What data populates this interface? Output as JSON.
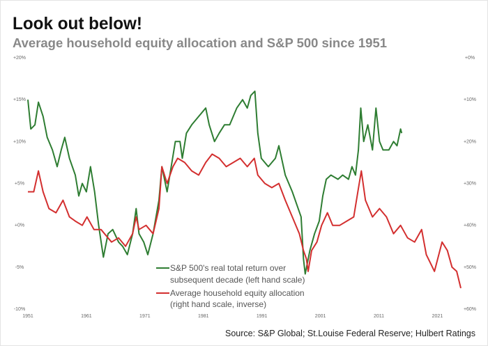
{
  "chart_data": {
    "type": "line",
    "title": "Look out below!",
    "subtitle": "Average household equity allocation and S&P 500 since 1951",
    "source": "Source: S&P Global; St.Louise Federal Reserve; Hulbert Ratings",
    "x_ticks": [
      "1951",
      "1961",
      "1971",
      "1981",
      "1991",
      "2001",
      "2011",
      "2021"
    ],
    "xlim": [
      1951,
      2025
    ],
    "left_axis": {
      "ticks": [
        "+20%",
        "+15%",
        "+10%",
        "+5%",
        "+0%",
        "-5%",
        "-10%"
      ],
      "range": [
        -10,
        20
      ]
    },
    "right_axis": {
      "ticks": [
        "+0%",
        "+10%",
        "+20%",
        "+30%",
        "+40%",
        "+50%",
        "+60%"
      ],
      "range": [
        0,
        60
      ],
      "inverse": true
    },
    "grid": false,
    "legend_placement": "bottom-center",
    "series": [
      {
        "name": "S&P 500's real total return over subsequent decade (left hand scale)",
        "legend_lines": [
          "S&P 500's real total return over",
          "subsequent decade (left hand scale)"
        ],
        "axis": "left",
        "color": "#2e7d32",
        "points": [
          [
            1951.0,
            15
          ],
          [
            1951.5,
            11.5
          ],
          [
            1952.2,
            12
          ],
          [
            1952.8,
            14.7
          ],
          [
            1953.6,
            13
          ],
          [
            1954.3,
            10.5
          ],
          [
            1955.2,
            9
          ],
          [
            1956.0,
            7
          ],
          [
            1956.7,
            9
          ],
          [
            1957.3,
            10.5
          ],
          [
            1958.1,
            8
          ],
          [
            1959.1,
            6
          ],
          [
            1959.7,
            3.5
          ],
          [
            1960.3,
            5
          ],
          [
            1961.0,
            4
          ],
          [
            1961.7,
            7
          ],
          [
            1962.4,
            4
          ],
          [
            1963.1,
            0
          ],
          [
            1963.9,
            -3.8
          ],
          [
            1964.7,
            -1
          ],
          [
            1965.5,
            -0.5
          ],
          [
            1966.5,
            -2
          ],
          [
            1967.2,
            -2.5
          ],
          [
            1968.0,
            -3.5
          ],
          [
            1968.9,
            -1
          ],
          [
            1969.5,
            2
          ],
          [
            1970.0,
            -1
          ],
          [
            1970.8,
            -2
          ],
          [
            1971.5,
            -3.5
          ],
          [
            1972.4,
            -1
          ],
          [
            1973.4,
            3
          ],
          [
            1973.9,
            7
          ],
          [
            1974.8,
            4
          ],
          [
            1975.5,
            7
          ],
          [
            1976.2,
            10
          ],
          [
            1977.0,
            10
          ],
          [
            1977.4,
            8
          ],
          [
            1978.1,
            11
          ],
          [
            1979.0,
            12
          ],
          [
            1980.2,
            13
          ],
          [
            1981.4,
            14
          ],
          [
            1982.0,
            12
          ],
          [
            1982.9,
            10
          ],
          [
            1983.7,
            11
          ],
          [
            1984.6,
            12
          ],
          [
            1985.5,
            12
          ],
          [
            1986.7,
            14
          ],
          [
            1987.7,
            15
          ],
          [
            1988.5,
            14
          ],
          [
            1989.1,
            15.5
          ],
          [
            1989.8,
            16
          ],
          [
            1990.3,
            11
          ],
          [
            1990.9,
            8
          ],
          [
            1992.1,
            7
          ],
          [
            1993.3,
            8
          ],
          [
            1993.9,
            9.5
          ],
          [
            1995.0,
            6
          ],
          [
            1996.2,
            4
          ],
          [
            1997.2,
            2
          ],
          [
            1997.7,
            1
          ],
          [
            1998.1,
            -4
          ],
          [
            1998.4,
            -5.8
          ],
          [
            1999.2,
            -3
          ],
          [
            2000.0,
            -1
          ],
          [
            2000.8,
            0.5
          ],
          [
            2001.4,
            3.5
          ],
          [
            2002.0,
            5.5
          ],
          [
            2002.8,
            6
          ],
          [
            2004.0,
            5.5
          ],
          [
            2004.8,
            6
          ],
          [
            2005.8,
            5.5
          ],
          [
            2006.4,
            7
          ],
          [
            2007.0,
            6
          ],
          [
            2007.5,
            9
          ],
          [
            2007.9,
            14
          ],
          [
            2008.4,
            10
          ],
          [
            2009.1,
            12
          ],
          [
            2009.9,
            9
          ],
          [
            2010.5,
            14
          ],
          [
            2011.1,
            10
          ],
          [
            2011.7,
            9
          ],
          [
            2012.7,
            9
          ],
          [
            2013.5,
            10
          ],
          [
            2014.1,
            9.5
          ],
          [
            2014.7,
            11.5
          ],
          [
            2014.9,
            11
          ]
        ]
      },
      {
        "name": "Average household equity allocation (right hand scale, inverse)",
        "legend_lines": [
          "Average household equity allocation",
          "(right hand scale, inverse)"
        ],
        "axis": "right",
        "color": "#d32f2f",
        "points": [
          [
            1951.0,
            32
          ],
          [
            1952.0,
            32
          ],
          [
            1952.8,
            27
          ],
          [
            1953.6,
            32
          ],
          [
            1954.6,
            36
          ],
          [
            1955.8,
            37
          ],
          [
            1957.0,
            34
          ],
          [
            1958.1,
            38
          ],
          [
            1959.1,
            39
          ],
          [
            1960.3,
            40
          ],
          [
            1961.1,
            38
          ],
          [
            1962.3,
            41
          ],
          [
            1963.5,
            41
          ],
          [
            1964.1,
            42
          ],
          [
            1965.3,
            44
          ],
          [
            1966.5,
            43
          ],
          [
            1967.7,
            45
          ],
          [
            1968.9,
            42
          ],
          [
            1969.5,
            38
          ],
          [
            1970.0,
            41
          ],
          [
            1971.2,
            40
          ],
          [
            1972.4,
            42
          ],
          [
            1973.4,
            36
          ],
          [
            1973.9,
            26
          ],
          [
            1974.8,
            30
          ],
          [
            1975.8,
            26
          ],
          [
            1976.6,
            24
          ],
          [
            1977.8,
            25
          ],
          [
            1979.0,
            27
          ],
          [
            1980.2,
            28
          ],
          [
            1981.4,
            25
          ],
          [
            1982.5,
            23
          ],
          [
            1983.7,
            24
          ],
          [
            1984.9,
            26
          ],
          [
            1986.1,
            25
          ],
          [
            1987.3,
            24
          ],
          [
            1988.5,
            26
          ],
          [
            1989.7,
            24
          ],
          [
            1990.3,
            28
          ],
          [
            1991.5,
            30
          ],
          [
            1992.7,
            31
          ],
          [
            1993.9,
            30
          ],
          [
            1995.0,
            34
          ],
          [
            1996.2,
            38
          ],
          [
            1997.4,
            42
          ],
          [
            1998.1,
            46
          ],
          [
            1998.6,
            48
          ],
          [
            1998.9,
            51
          ],
          [
            1999.5,
            46
          ],
          [
            2000.4,
            44
          ],
          [
            2001.2,
            40
          ],
          [
            2002.2,
            37
          ],
          [
            2003.1,
            40
          ],
          [
            2004.3,
            40
          ],
          [
            2005.5,
            39
          ],
          [
            2006.7,
            38
          ],
          [
            2007.4,
            32
          ],
          [
            2008.0,
            27
          ],
          [
            2008.7,
            34
          ],
          [
            2009.9,
            38
          ],
          [
            2011.1,
            36
          ],
          [
            2012.3,
            38
          ],
          [
            2013.5,
            42
          ],
          [
            2014.7,
            40
          ],
          [
            2015.9,
            43
          ],
          [
            2017.1,
            44
          ],
          [
            2018.3,
            41
          ],
          [
            2019.1,
            47
          ],
          [
            2019.8,
            49
          ],
          [
            2020.5,
            51
          ],
          [
            2021.8,
            44
          ],
          [
            2022.7,
            46
          ],
          [
            2023.5,
            50
          ],
          [
            2024.3,
            51
          ],
          [
            2025.0,
            55
          ]
        ]
      }
    ]
  }
}
